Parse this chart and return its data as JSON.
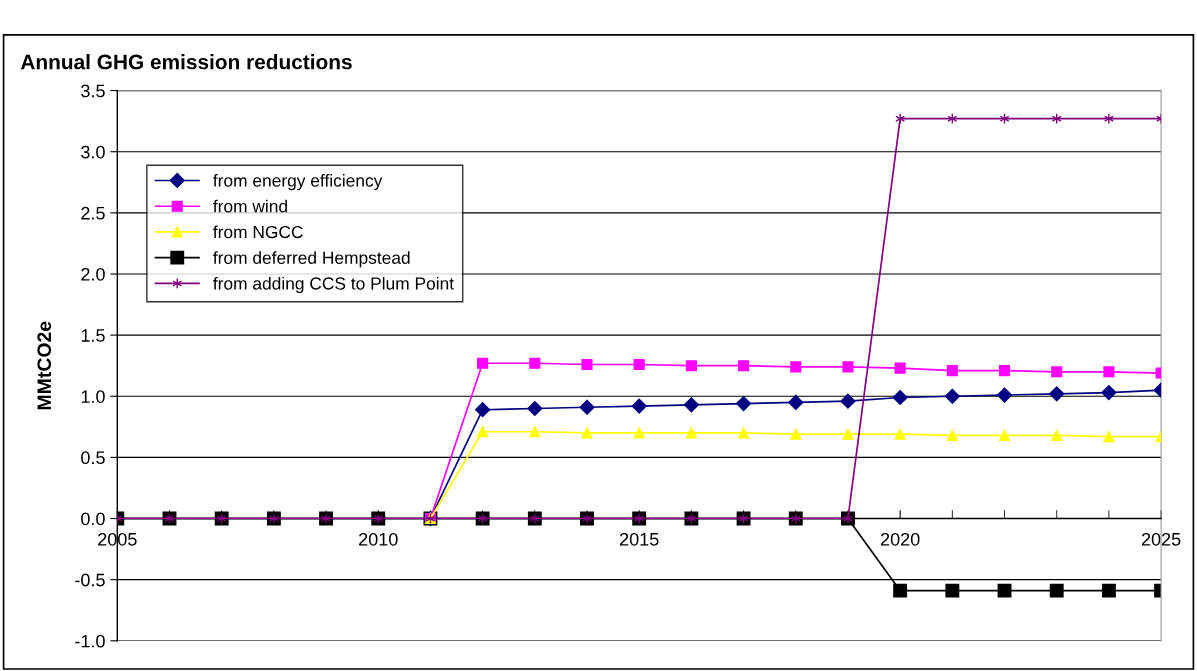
{
  "chart_data": {
    "type": "line",
    "title": "Annual GHG emission reductions",
    "ylabel": "MMtCO2e",
    "x": [
      2005,
      2006,
      2007,
      2008,
      2009,
      2010,
      2011,
      2012,
      2013,
      2014,
      2015,
      2016,
      2017,
      2018,
      2019,
      2020,
      2021,
      2022,
      2023,
      2024,
      2025
    ],
    "xlim": [
      2005,
      2025
    ],
    "xticks": [
      2005,
      2010,
      2015,
      2020,
      2025
    ],
    "ylim": [
      -1.0,
      3.5
    ],
    "yticks": [
      {
        "value": -1.0,
        "label": "-1.0"
      },
      {
        "value": -0.5,
        "label": "-0.5"
      },
      {
        "value": 0.0,
        "label": "0.0"
      },
      {
        "value": 0.5,
        "label": "0.5"
      },
      {
        "value": 1.0,
        "label": "1.0"
      },
      {
        "value": 1.5,
        "label": "1.5"
      },
      {
        "value": 2.0,
        "label": "2.0"
      },
      {
        "value": 2.5,
        "label": "2.5"
      },
      {
        "value": 3.0,
        "label": "3.0"
      },
      {
        "value": 3.5,
        "label": "3.5"
      }
    ],
    "grid": "y",
    "legend": "top left",
    "series": [
      {
        "name": "from energy efficiency",
        "color": "#000080",
        "marker": "diamond",
        "values": [
          null,
          null,
          null,
          null,
          null,
          null,
          0,
          0.89,
          0.9,
          0.91,
          0.92,
          0.93,
          0.94,
          0.95,
          0.96,
          0.99,
          1.0,
          1.01,
          1.02,
          1.03,
          1.05
        ]
      },
      {
        "name": "from wind",
        "color": "#ff00ff",
        "marker": "square",
        "values": [
          null,
          null,
          null,
          null,
          null,
          null,
          0,
          1.27,
          1.27,
          1.26,
          1.26,
          1.25,
          1.25,
          1.24,
          1.24,
          1.23,
          1.21,
          1.21,
          1.2,
          1.2,
          1.19
        ]
      },
      {
        "name": "from NGCC",
        "color": "#ffff00",
        "marker": "triangle",
        "values": [
          null,
          null,
          null,
          null,
          null,
          null,
          0,
          0.71,
          0.71,
          0.7,
          0.7,
          0.7,
          0.7,
          0.69,
          0.69,
          0.69,
          0.68,
          0.68,
          0.68,
          0.67,
          0.67
        ]
      },
      {
        "name": "from deferred Hempstead",
        "color": "#000000",
        "marker": "square",
        "values": [
          0,
          0,
          0,
          0,
          0,
          0,
          0,
          0,
          0,
          0,
          0,
          0,
          0,
          0,
          0,
          -0.59,
          -0.59,
          -0.59,
          -0.59,
          -0.59,
          -0.59
        ]
      },
      {
        "name": "from adding CCS to Plum Point",
        "color": "#800080",
        "marker": "cross",
        "values": [
          0,
          0,
          0,
          0,
          0,
          0,
          0,
          0,
          0,
          0,
          0,
          0,
          0,
          0,
          0,
          3.27,
          3.27,
          3.27,
          3.27,
          3.27,
          3.27
        ]
      }
    ]
  }
}
